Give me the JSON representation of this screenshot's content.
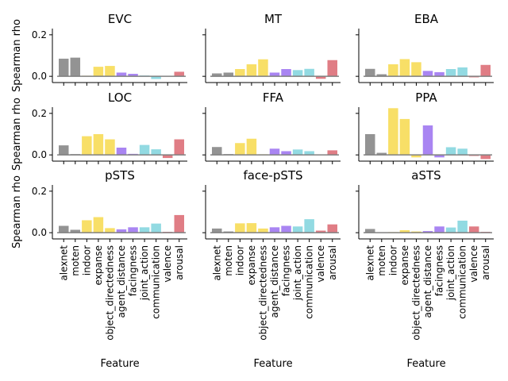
{
  "chart_data": {
    "type": "bar",
    "grid": false,
    "sharey": true,
    "ylim": [
      -0.03,
      0.23
    ],
    "yticks": [
      0.0,
      0.2
    ],
    "yticklabels": [
      "0.0",
      "0.2"
    ],
    "ylabel": "Spearman rho",
    "xlabel": "Feature",
    "categories": [
      "alexnet",
      "moten",
      "indoor",
      "expanse",
      "object_directedness",
      "agent_distance",
      "facingness",
      "joint_action",
      "communication",
      "valence",
      "arousal"
    ],
    "category_colors": [
      "#808080",
      "#808080",
      "#f7d94c",
      "#f7d94c",
      "#f7d94c",
      "#9a70f0",
      "#9a70f0",
      "#7fd3dd",
      "#7fd3dd",
      "#db6670",
      "#db6670"
    ],
    "panels": [
      {
        "title": "EVC",
        "values": [
          0.085,
          0.09,
          0.003,
          0.046,
          0.05,
          0.018,
          0.012,
          0.004,
          -0.013,
          0.002,
          0.022
        ]
      },
      {
        "title": "MT",
        "values": [
          0.014,
          0.018,
          0.035,
          0.058,
          0.082,
          0.018,
          0.035,
          0.03,
          0.036,
          -0.012,
          0.078
        ]
      },
      {
        "title": "EBA",
        "values": [
          0.036,
          0.01,
          0.058,
          0.083,
          0.068,
          0.026,
          0.02,
          0.035,
          0.043,
          -0.005,
          0.055
        ]
      },
      {
        "title": "LOC",
        "values": [
          0.046,
          0.004,
          0.09,
          0.1,
          0.075,
          0.035,
          0.005,
          0.048,
          0.027,
          -0.015,
          0.075
        ]
      },
      {
        "title": "FFA",
        "values": [
          0.038,
          0.004,
          0.057,
          0.078,
          0.003,
          0.03,
          0.018,
          0.026,
          0.018,
          0.002,
          0.022
        ]
      },
      {
        "title": "PPA",
        "values": [
          0.1,
          0.01,
          0.225,
          0.173,
          -0.012,
          0.142,
          -0.012,
          0.037,
          0.03,
          -0.005,
          -0.02
        ]
      },
      {
        "title": "pSTS",
        "values": [
          0.033,
          0.014,
          0.06,
          0.075,
          0.022,
          0.016,
          0.026,
          0.026,
          0.044,
          0.004,
          0.085
        ]
      },
      {
        "title": "face-pSTS",
        "values": [
          0.02,
          0.006,
          0.045,
          0.046,
          0.02,
          0.026,
          0.033,
          0.03,
          0.065,
          0.01,
          0.04
        ]
      },
      {
        "title": "aSTS",
        "values": [
          0.018,
          0.002,
          0.003,
          0.012,
          0.006,
          0.008,
          0.03,
          0.025,
          0.058,
          0.03,
          0.004
        ]
      }
    ]
  }
}
